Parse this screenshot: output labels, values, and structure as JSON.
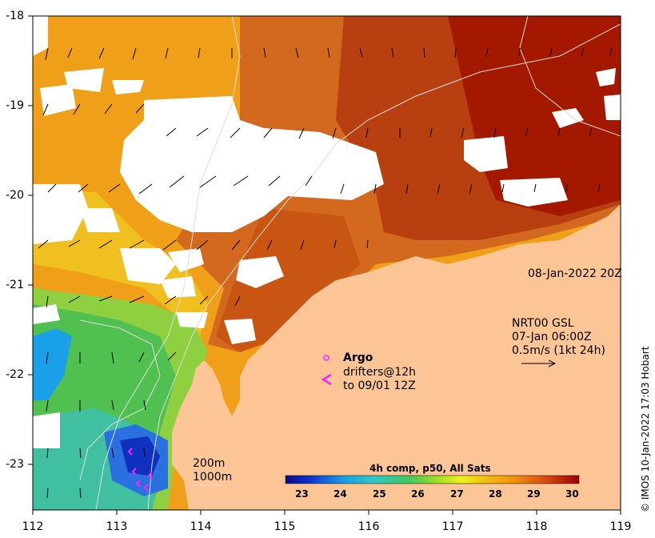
{
  "map": {
    "lat_ticks": [
      "-18",
      "-19",
      "-20",
      "-21",
      "-22",
      "-23"
    ],
    "lon_ticks": [
      "112",
      "113",
      "114",
      "115",
      "116",
      "117",
      "118",
      "119"
    ],
    "date_label": "08-Jan-2022 20Z",
    "currents": {
      "title": "NRT00 GSL",
      "time": "07-Jan 06:00Z",
      "scale": "0.5m/s (1kt 24h)"
    },
    "argo_label": "Argo",
    "drifters_line1": "drifters@12h",
    "drifters_line2": "to 09/01 12Z",
    "isobath_200": "200m",
    "isobath_1000": "1000m",
    "colorbar": {
      "title": "4h comp, p50, All Sats",
      "ticks": [
        "23",
        "24",
        "25",
        "26",
        "27",
        "28",
        "29",
        "30"
      ]
    },
    "copyright": "© IMOS 10-Jan-2022 17:03 Hobart",
    "colors": {
      "land": "#fbc596",
      "cloud": "#ffffff",
      "argo": "#ff22ff",
      "drifter": "#ff22ff"
    }
  }
}
